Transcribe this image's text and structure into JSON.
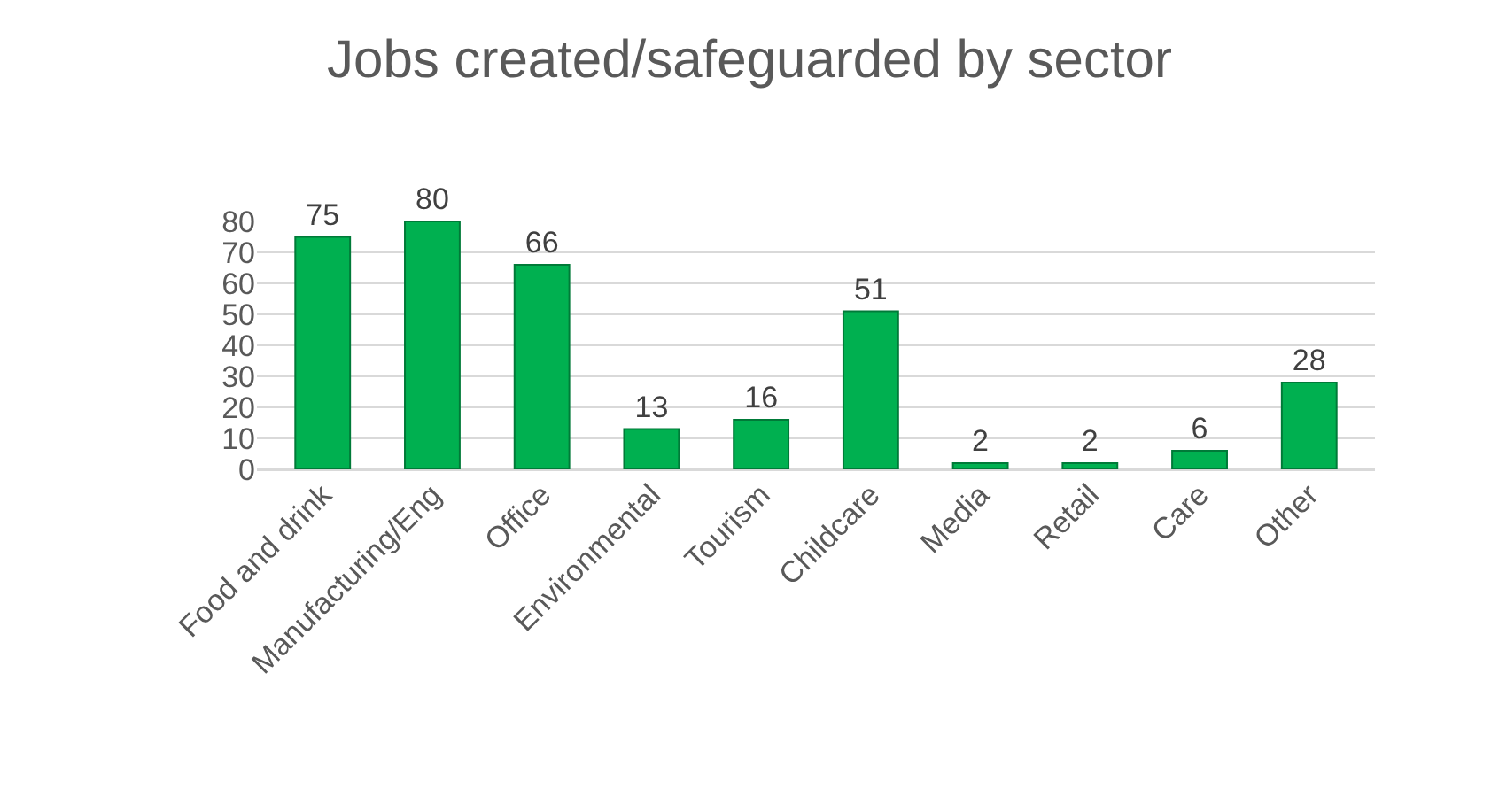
{
  "chart_data": {
    "type": "bar",
    "title": "Jobs created/safeguarded by sector",
    "categories": [
      "Food and drink",
      "Manufacturing/Eng",
      "Office",
      "Environmental",
      "Tourism",
      "Childcare",
      "Media",
      "Retail",
      "Care",
      "Other"
    ],
    "values": [
      75,
      80,
      66,
      13,
      16,
      51,
      2,
      2,
      6,
      28
    ],
    "color": "#00b050",
    "ylim": [
      0,
      80
    ],
    "yticks": [
      0,
      10,
      20,
      30,
      40,
      50,
      60,
      70,
      80
    ],
    "grid": "y",
    "data_labels": true,
    "legend": false
  }
}
